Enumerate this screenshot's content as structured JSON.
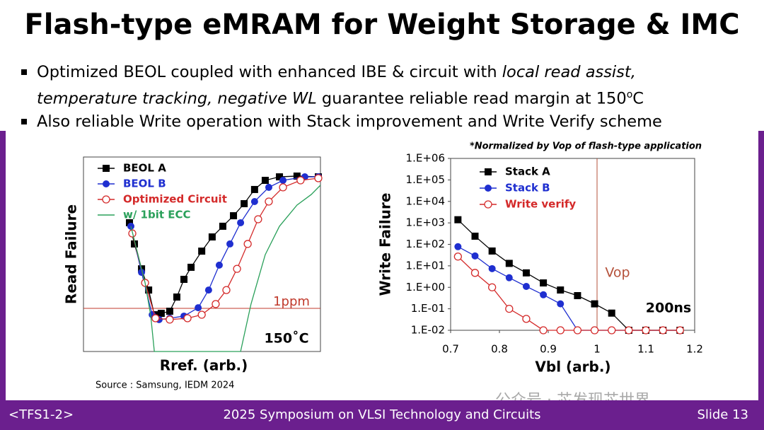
{
  "header": {
    "title": "Flash-type eMRAM for Weight Storage & IMC"
  },
  "bullets": [
    [
      {
        "text": "Optimized BEOL coupled with enhanced IBE & circuit with "
      },
      {
        "text": "local read assist,",
        "italic": true
      },
      {
        "text": " "
      },
      {
        "text": "temperature tracking, negative WL",
        "italic": true
      },
      {
        "text": " guarantee reliable read margin at 150"
      },
      {
        "text": "o",
        "sup": true
      },
      {
        "text": "C"
      }
    ],
    [
      {
        "text": "Also reliable Write operation with Stack improvement and Write Verify scheme"
      }
    ]
  ],
  "chart_data": [
    {
      "type": "line",
      "x_label": "Rref. (arb.)",
      "y_label": "Read Failure",
      "xlim": [
        0,
        100
      ],
      "ylim": [
        0,
        100
      ],
      "reference_line": {
        "value": 22.2,
        "label": "1ppm",
        "color": "#c0392b"
      },
      "annotation": "150˚C",
      "legend": "top-left",
      "series": [
        {
          "name": "BEOL A",
          "color": "#000000",
          "marker": "square",
          "x": [
            19.4,
            21.5,
            24.5,
            27.5,
            29.9,
            32.8,
            36.4,
            39.4,
            42.4,
            45.4,
            49.9,
            54.3,
            58.8,
            63.3,
            67.8,
            72.2,
            76.7,
            82.7,
            90.1,
            99.1
          ],
          "values": [
            66.2,
            55.3,
            42.5,
            31.6,
            18.9,
            19.6,
            20.7,
            28,
            37.1,
            43.3,
            51.6,
            58.9,
            64.4,
            69.8,
            76,
            83.3,
            88,
            89.8,
            90.2,
            89.8
          ]
        },
        {
          "name": "BEOL B",
          "color": "#1f2fd0",
          "marker": "circle",
          "x": [
            20,
            24.5,
            29,
            31.9,
            36.4,
            42.4,
            48.4,
            52.8,
            57.3,
            61.8,
            66.3,
            72.2,
            78.2,
            84.2,
            93.4,
            99.1
          ],
          "values": [
            64.4,
            40.7,
            18.9,
            16.4,
            17.1,
            18.2,
            22.5,
            31.6,
            44.4,
            55.3,
            66.2,
            77.1,
            84.4,
            88,
            89.8,
            89.8
          ]
        },
        {
          "name": "Optimized Circuit",
          "color": "#d42a2a",
          "marker": "open-circle",
          "x": [
            20.6,
            26,
            30.4,
            36.4,
            43.9,
            49.9,
            55.8,
            60.3,
            64.8,
            69.3,
            73.7,
            78.2,
            84.2,
            91.6,
            99.1
          ],
          "values": [
            60.7,
            35.3,
            17.1,
            16.4,
            17.1,
            18.9,
            24.4,
            31.6,
            42.5,
            55.3,
            68,
            77.1,
            84.4,
            88,
            89.1
          ]
        },
        {
          "name": "w/ 1bit ECC",
          "color": "#2aa05a",
          "marker": "none",
          "x": [
            20,
            26,
            28.4,
            29.9,
            66.3,
            70.7,
            76.7,
            82.7,
            90.1,
            96.1,
            100
          ],
          "values": [
            64.4,
            35.3,
            18.2,
            0,
            0,
            24.4,
            49.8,
            64.4,
            75.3,
            80.7,
            85.5
          ]
        }
      ]
    },
    {
      "type": "line",
      "note": "*Normalized by Vop of flash-type application",
      "x_label": "Vbl (arb.)",
      "y_label": "Write Failure",
      "y_scale": "log",
      "xlim": [
        0.7,
        1.2
      ],
      "ylim": [
        0.01,
        1000000
      ],
      "xticks": [
        0.7,
        0.8,
        0.9,
        1,
        1.1,
        1.2
      ],
      "yticks": [
        {
          "value": 0.01,
          "label": "1.E-02"
        },
        {
          "value": 0.1,
          "label": "1.E-01"
        },
        {
          "value": 1,
          "label": "1.E+00"
        },
        {
          "value": 10,
          "label": "1.E+01"
        },
        {
          "value": 100,
          "label": "1.E+02"
        },
        {
          "value": 1000,
          "label": "1.E+03"
        },
        {
          "value": 10000,
          "label": "1.E+04"
        },
        {
          "value": 100000,
          "label": "1.E+05"
        },
        {
          "value": 1000000,
          "label": "1.E+06"
        }
      ],
      "vertical_line": {
        "value": 1,
        "label": "Vop",
        "color": "#b5523b"
      },
      "annotation": "200ns",
      "legend": "top-left",
      "x": [
        0.715,
        0.75,
        0.785,
        0.82,
        0.855,
        0.89,
        0.925,
        0.96,
        0.995,
        1.03,
        1.065,
        1.1,
        1.135,
        1.17
      ],
      "series": [
        {
          "name": "Stack A",
          "color": "#000000",
          "marker": "square",
          "values": [
            1400,
            240,
            49,
            13,
            4.7,
            1.6,
            0.75,
            0.41,
            0.17,
            0.063,
            0.01,
            0.01,
            0.01,
            0.01
          ]
        },
        {
          "name": "Stack B",
          "color": "#1f2fd0",
          "marker": "circle",
          "values": [
            78,
            29,
            7.4,
            2.8,
            1.1,
            0.45,
            0.17,
            0.01,
            0.01,
            0.01,
            0.01,
            0.01,
            0.01,
            0.01
          ]
        },
        {
          "name": "Write verify",
          "color": "#d42a2a",
          "marker": "open-circle",
          "values": [
            27,
            4.7,
            1,
            0.1,
            0.034,
            0.01,
            0.01,
            0.01,
            0.01,
            0.01,
            0.01,
            0.01,
            0.01,
            0.01
          ]
        }
      ]
    }
  ],
  "source": "Source : Samsung, IEDM 2024",
  "footer": {
    "left": "<TFS1-2>",
    "center": "2025 Symposium on VLSI Technology and Circuits",
    "right": "Slide 13"
  },
  "watermark": "公众号 · 芯发现芯世界"
}
